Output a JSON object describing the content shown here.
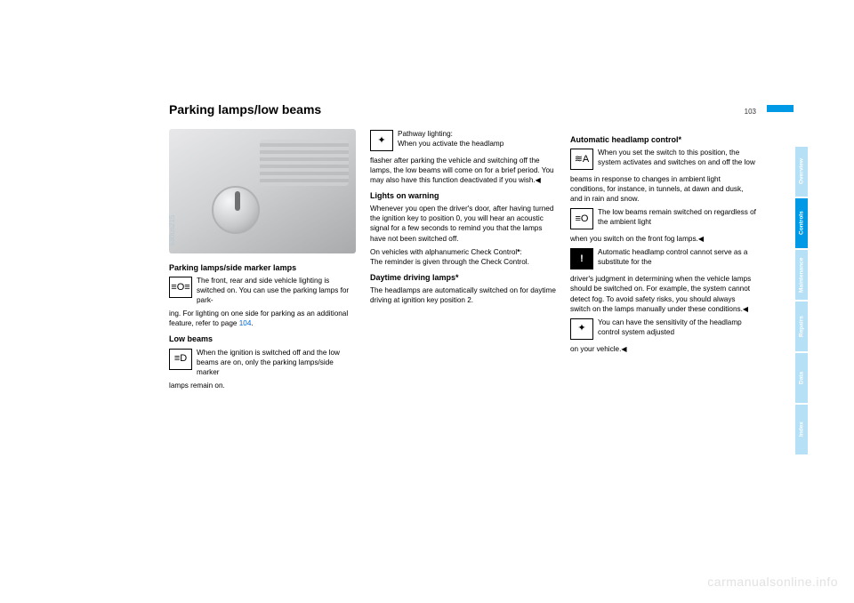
{
  "page": {
    "title": "Parking lamps/low beams",
    "number": "103"
  },
  "figure": {
    "caption": "530us215"
  },
  "col1": {
    "h1": "Parking lamps/side marker lamps",
    "p1a": "The front, rear and side vehicle lighting is switched on. You can use the parking lamps for park-",
    "p1b": "ing. For lighting on one side for parking as an additional feature, refer to page ",
    "p1link": "104",
    "p1c": ".",
    "h2": "Low beams",
    "p2a": "When the ignition is switched off and the low beams are on, only the parking lamps/side marker",
    "p2b": "lamps remain on."
  },
  "col2": {
    "p1a": "Pathway lighting:",
    "p1b": "When you activate the headlamp",
    "p1c": "flasher after parking the vehicle and switching off the lamps, the low beams will come on for a brief period. You may also have this function deactivated if you wish.◀",
    "h2": "Lights on warning",
    "p2": "Whenever you open the driver's door, after having turned the ignition key to position 0, you will hear an acoustic signal for a few seconds to remind you that the lamps have not been switched off.",
    "p3a": "On vehicles with alphanumeric Check Control",
    "p3star": "*",
    "p3b": ":",
    "p3c": "The reminder is given through the Check Control.",
    "h3": "Daytime driving lamps*",
    "p4": "The headlamps are automatically switched on for daytime driving at ignition key position 2."
  },
  "col3": {
    "h1": "Automatic headlamp control*",
    "p1a": "When you set the switch to this position, the system activates and switches on and off the low",
    "p1b": "beams in response to changes in ambient light conditions, for instance, in tunnels, at dawn and dusk, and in rain and snow.",
    "p2a": "The low beams remain switched on regardless of the ambient light",
    "p2b": "when you switch on the front fog lamps.◀",
    "p3a": "Automatic headlamp control cannot serve as a substitute for the",
    "p3b": "driver's judgment in determining when the vehicle lamps should be switched on. For example, the system cannot detect fog. To avoid safety risks, you should always switch on the lamps manually under these conditions.◀",
    "p4a": "You can have the sensitivity of the headlamp control system adjusted",
    "p4b": "on your vehicle.◀"
  },
  "tabs": {
    "t1": "Overview",
    "t2": "Controls",
    "t3": "Maintenance",
    "t4": "Repairs",
    "t5": "Data",
    "t6": "Index"
  },
  "icons": {
    "parking": "≡O≡",
    "lowbeam": "≡D",
    "person": "✦",
    "auto": "≋A",
    "fog": "≡O",
    "warn": "!"
  },
  "watermark": "carmanualsonline.info"
}
